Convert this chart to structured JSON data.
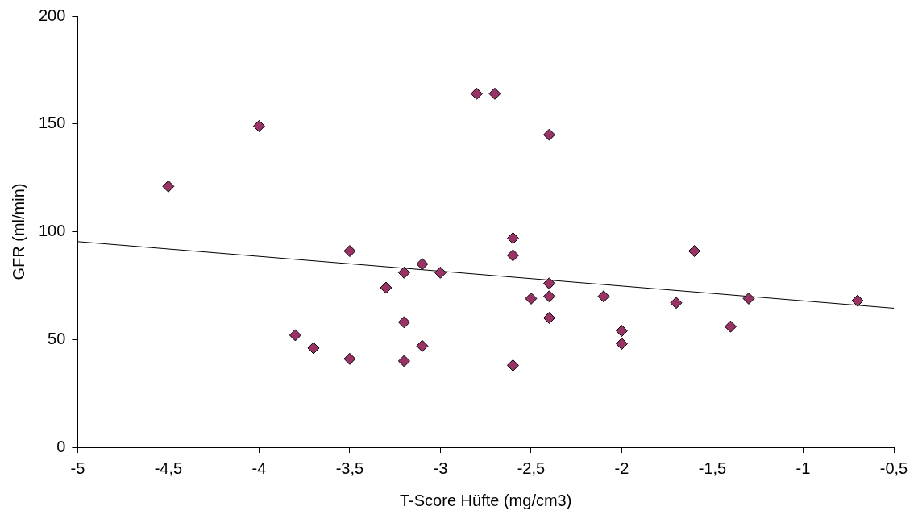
{
  "chart_data": {
    "type": "scatter",
    "xlabel": "T-Score Hüfte (mg/cm3)",
    "ylabel": "GFR (ml/min)",
    "xlim": [
      -5,
      -0.5
    ],
    "xticks": [
      -5,
      {
        "value": -4.5,
        "label": "-4,5"
      },
      -4,
      {
        "value": -3.5,
        "label": "-3,5"
      },
      -3,
      {
        "value": -2.5,
        "label": "-2,5"
      },
      -2,
      {
        "value": -1.5,
        "label": "-1,5"
      },
      -1,
      {
        "value": -0.5,
        "label": "-0,5"
      }
    ],
    "ylim": [
      0,
      200
    ],
    "yticks": [
      0,
      50,
      100,
      150,
      200
    ],
    "series": [
      {
        "color": "#993366",
        "marker": "diamond",
        "x": [
          -4.5,
          -4,
          -3.8,
          -3.7,
          -3.5,
          -3.5,
          -3.3,
          -3.2,
          -3.2,
          -3.2,
          -3.1,
          -3.1,
          -3,
          -2.8,
          -2.7,
          -2.6,
          -2.6,
          -2.6,
          -2.5,
          -2.4,
          -2.4,
          -2.4,
          -2.4,
          -2.1,
          -2,
          -2,
          -1.7,
          -1.6,
          -1.4,
          -1.3,
          -0.7
        ],
        "values": [
          121,
          149,
          52,
          46,
          91,
          41,
          74,
          81,
          58,
          40,
          85,
          47,
          81,
          164,
          164,
          97,
          89,
          38,
          69,
          145,
          76,
          70,
          60,
          70,
          54,
          48,
          67,
          91,
          56,
          69,
          68
        ]
      },
      {
        "type": "line",
        "marker": "none",
        "color": "#000000",
        "x": [
          -5,
          -0.5
        ],
        "values": [
          95.4,
          64.5
        ]
      }
    ]
  }
}
